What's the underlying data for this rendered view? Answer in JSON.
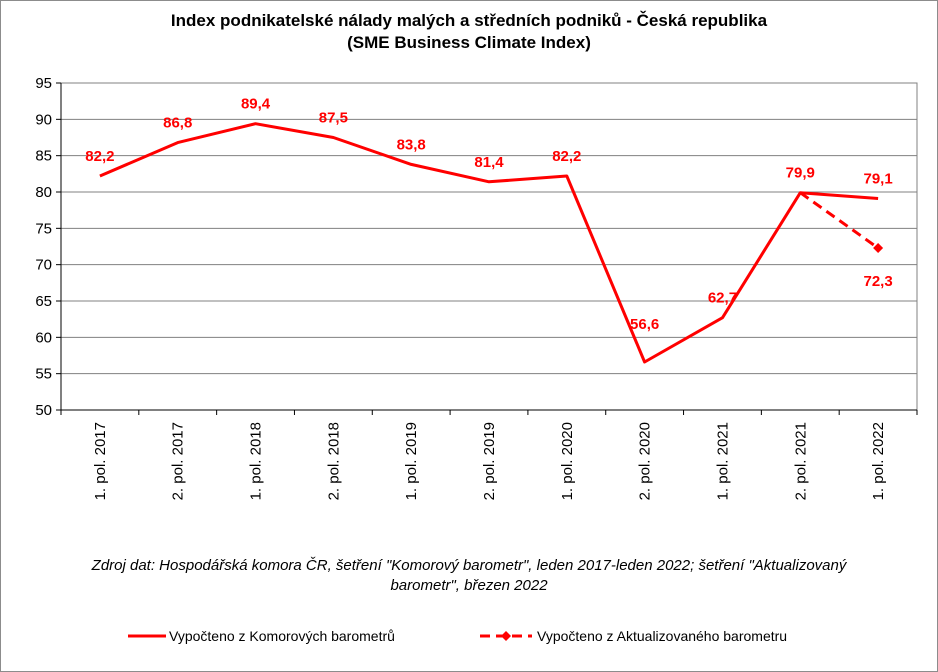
{
  "chart_data": {
    "type": "line",
    "title_lines": [
      "Index podnikatelské nálady malých a středních podniků - Česká republika",
      "(SME Business Climate Index)"
    ],
    "categories": [
      "1. pol. 2017",
      "2. pol. 2017",
      "1. pol. 2018",
      "2. pol. 2018",
      "1. pol. 2019",
      "2. pol. 2019",
      "1. pol. 2020",
      "2. pol. 2020",
      "1. pol. 2021",
      "2. pol. 2021",
      "1. pol. 2022"
    ],
    "y_ticks": [
      "50",
      "55",
      "60",
      "65",
      "70",
      "75",
      "80",
      "85",
      "90",
      "95"
    ],
    "ylim": [
      50,
      95
    ],
    "grid": true,
    "legend_position": "bottom",
    "colors": {
      "series": "#ff0000",
      "grid": "#808080",
      "labels": "#ff0000"
    },
    "series": [
      {
        "name": "Vypočteno z Komorových barometrů",
        "style": "solid",
        "values": [
          82.2,
          86.8,
          89.4,
          87.5,
          83.8,
          81.4,
          82.2,
          56.6,
          62.7,
          79.9,
          79.1
        ],
        "labels": [
          "82,2",
          "86,8",
          "89,4",
          "87,5",
          "83,8",
          "81,4",
          "82,2",
          "56,6",
          "62,7",
          "79,9",
          "79,1"
        ]
      },
      {
        "name": "Vypočteno z Aktualizovaného barometru",
        "style": "dashed",
        "marker": "diamond",
        "values": [
          null,
          null,
          null,
          null,
          null,
          null,
          null,
          null,
          null,
          79.9,
          72.3
        ],
        "labels": [
          null,
          null,
          null,
          null,
          null,
          null,
          null,
          null,
          null,
          null,
          "72,3"
        ]
      }
    ],
    "source_lines": [
      "Zdroj dat: Hospodářská komora ČR, šetření \"Komorový barometr\", leden 2017-leden 2022; šetření \"Aktualizovaný",
      "barometr\", březen 2022"
    ]
  }
}
